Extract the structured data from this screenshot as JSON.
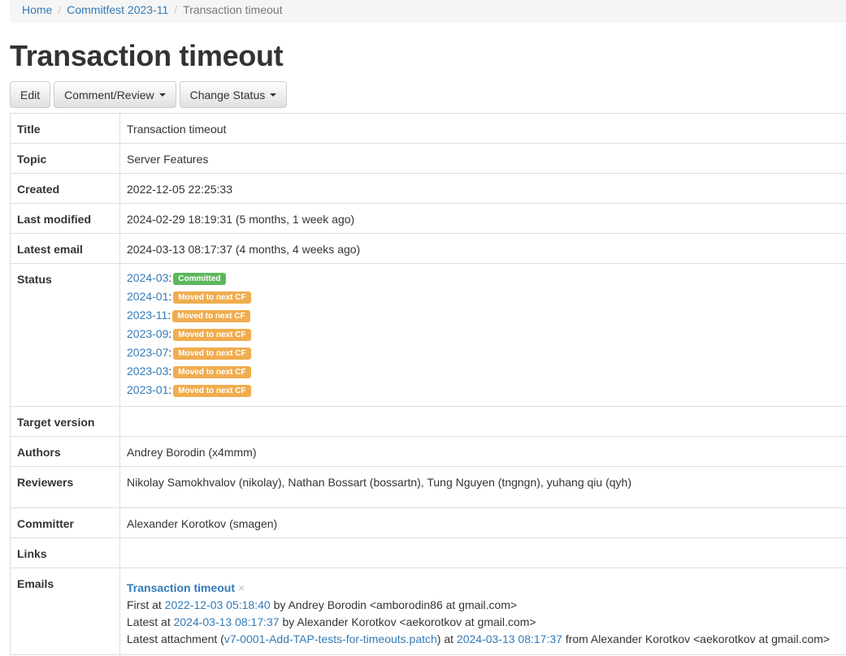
{
  "breadcrumb": {
    "home": "Home",
    "commitfest": "Commitfest 2023-11",
    "current": "Transaction timeout"
  },
  "title": "Transaction timeout",
  "buttons": {
    "edit": "Edit",
    "comment": "Comment/Review",
    "status": "Change Status"
  },
  "fields": {
    "title": {
      "label": "Title",
      "value": "Transaction timeout"
    },
    "topic": {
      "label": "Topic",
      "value": "Server Features"
    },
    "created": {
      "label": "Created",
      "value": "2022-12-05 22:25:33"
    },
    "modified": {
      "label": "Last modified",
      "value": "2024-02-29 18:19:31 (5 months, 1 week ago)"
    },
    "email": {
      "label": "Latest email",
      "value": "2024-03-13 08:17:37 (4 months, 4 weeks ago)"
    },
    "status": {
      "label": "Status",
      "items": [
        {
          "cf": "2024-03",
          "state": "Committed",
          "color": "#5cb85c"
        },
        {
          "cf": "2024-01",
          "state": "Moved to next CF",
          "color": "#f0ad4e"
        },
        {
          "cf": "2023-11",
          "state": "Moved to next CF",
          "color": "#f0ad4e"
        },
        {
          "cf": "2023-09",
          "state": "Moved to next CF",
          "color": "#f0ad4e"
        },
        {
          "cf": "2023-07",
          "state": "Moved to next CF",
          "color": "#f0ad4e"
        },
        {
          "cf": "2023-03",
          "state": "Moved to next CF",
          "color": "#f0ad4e"
        },
        {
          "cf": "2023-01",
          "state": "Moved to next CF",
          "color": "#f0ad4e"
        }
      ]
    },
    "target": {
      "label": "Target version",
      "value": ""
    },
    "authors": {
      "label": "Authors",
      "value": "Andrey Borodin (x4mmm)"
    },
    "reviewers": {
      "label": "Reviewers",
      "value": "Nikolay Samokhvalov (nikolay), Nathan Bossart (bossartn), Tung Nguyen (tngngn), yuhang qiu (qyh)"
    },
    "committer": {
      "label": "Committer",
      "value": "Alexander Korotkov (smagen)"
    },
    "links": {
      "label": "Links",
      "value": ""
    },
    "emails": {
      "label": "Emails",
      "thread": "Transaction timeout",
      "close": "×",
      "first_pre": "First at",
      "first_date": "2022-12-03 05:18:40",
      "first_post": "by Andrey Borodin <amborodin86 at gmail.com>",
      "latest_pre": "Latest at",
      "latest_date": "2024-03-13 08:17:37",
      "latest_post": "by Alexander Korotkov <aekorotkov at gmail.com>",
      "att_pre": "Latest attachment (",
      "att_file": "v7-0001-Add-TAP-tests-for-timeouts.patch",
      "att_mid": ") at",
      "att_date": "2024-03-13 08:17:37",
      "att_post": "from Alexander Korotkov <aekorotkov at gmail.com>"
    }
  }
}
